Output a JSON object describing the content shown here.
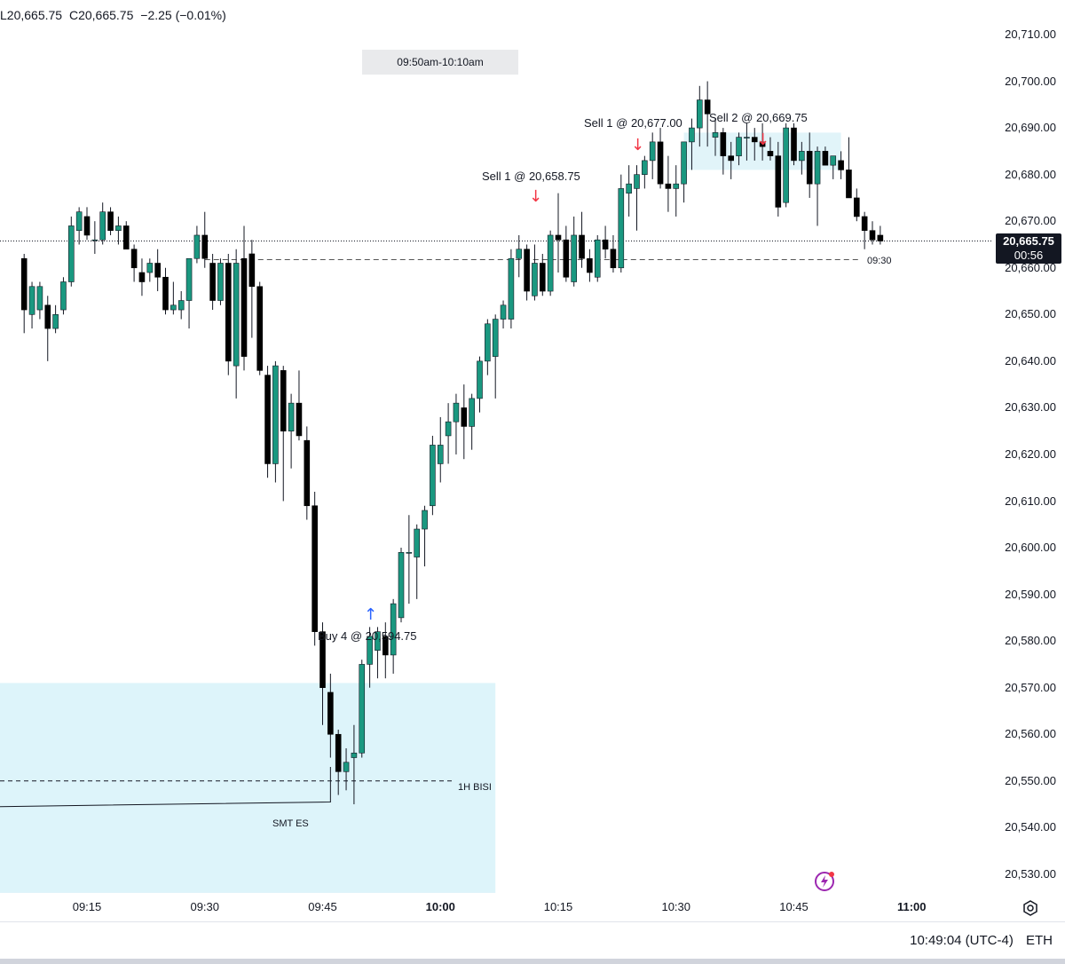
{
  "header": {
    "low": "L20,665.75",
    "close": "C20,665.75",
    "change": "−2.25 (−0.01%)"
  },
  "session_label": "09:50am-10:10am",
  "annotations": {
    "sell1a": "Sell 1 @ 20,658.75",
    "sell1b": "Sell 1 @ 20,677.00",
    "sell2": "Sell 2 @ 20,669.75",
    "buy4": "Buy 4 @ 20,594.75",
    "bisi": "1H BISI",
    "smt": "SMT ES",
    "open_line": "09:30"
  },
  "price_tag": {
    "price": "20,665.75",
    "countdown": "00:56"
  },
  "footer": {
    "clock": "10:49:04 (UTC-4)",
    "session": "ETH"
  },
  "icons": {
    "settings": "gear-icon",
    "alert": "lightning-icon"
  },
  "colors": {
    "up": "#1a9880",
    "down": "#000000",
    "zone": "#ddf4fa",
    "sell_arrow": "#f23645",
    "buy_arrow": "#2962ff"
  },
  "chart_data": {
    "type": "candlestick",
    "symbol_timeframe": "1m",
    "y_ticks": [
      "20,710.00",
      "20,700.00",
      "20,690.00",
      "20,680.00",
      "20,670.00",
      "20,660.00",
      "20,650.00",
      "20,640.00",
      "20,630.00",
      "20,620.00",
      "20,610.00",
      "20,600.00",
      "20,590.00",
      "20,580.00",
      "20,570.00",
      "20,560.00",
      "20,550.00",
      "20,540.00",
      "20,530.00"
    ],
    "x_ticks": [
      {
        "label": "09:15",
        "bold": false
      },
      {
        "label": "09:30",
        "bold": false
      },
      {
        "label": "09:45",
        "bold": false
      },
      {
        "label": "10:00",
        "bold": true
      },
      {
        "label": "10:15",
        "bold": false
      },
      {
        "label": "10:30",
        "bold": false
      },
      {
        "label": "10:45",
        "bold": false
      },
      {
        "label": "11:00",
        "bold": true
      }
    ],
    "ylim": [
      20526,
      20713
    ],
    "xlim": [
      "09:06",
      "11:13"
    ],
    "last_price": 20665.75,
    "opening_price_0930": 20661.75,
    "bisi_level": 20550.0,
    "highlight_zone": {
      "from": "09:03",
      "to": "10:07",
      "low": 20526,
      "high": 20571
    },
    "candles": [
      {
        "t": "09:07",
        "o": 20662,
        "h": 20663,
        "l": 20646,
        "c": 20651
      },
      {
        "t": "09:08",
        "o": 20650,
        "h": 20657,
        "l": 20647,
        "c": 20656
      },
      {
        "t": "09:09",
        "o": 20651,
        "h": 20657,
        "l": 20649,
        "c": 20656
      },
      {
        "t": "09:10",
        "o": 20652,
        "h": 20654,
        "l": 20640,
        "c": 20647
      },
      {
        "t": "09:11",
        "o": 20647,
        "h": 20652,
        "l": 20646,
        "c": 20650
      },
      {
        "t": "09:12",
        "o": 20651,
        "h": 20658,
        "l": 20650,
        "c": 20657
      },
      {
        "t": "09:13",
        "o": 20657,
        "h": 20671,
        "l": 20656,
        "c": 20669
      },
      {
        "t": "09:14",
        "o": 20668,
        "h": 20673,
        "l": 20665,
        "c": 20672
      },
      {
        "t": "09:15",
        "o": 20671,
        "h": 20673,
        "l": 20666,
        "c": 20667
      },
      {
        "t": "09:16",
        "o": 20666,
        "h": 20670,
        "l": 20663,
        "c": 20666
      },
      {
        "t": "09:17",
        "o": 20666,
        "h": 20674,
        "l": 20665,
        "c": 20672
      },
      {
        "t": "09:18",
        "o": 20672,
        "h": 20673,
        "l": 20667,
        "c": 20668
      },
      {
        "t": "09:19",
        "o": 20668,
        "h": 20671,
        "l": 20665,
        "c": 20669
      },
      {
        "t": "09:20",
        "o": 20669,
        "h": 20670,
        "l": 20664,
        "c": 20664
      },
      {
        "t": "09:21",
        "o": 20664,
        "h": 20665,
        "l": 20657,
        "c": 20660
      },
      {
        "t": "09:22",
        "o": 20659,
        "h": 20662,
        "l": 20654,
        "c": 20657
      },
      {
        "t": "09:23",
        "o": 20659,
        "h": 20662,
        "l": 20657,
        "c": 20661
      },
      {
        "t": "09:24",
        "o": 20661,
        "h": 20664,
        "l": 20655,
        "c": 20658
      },
      {
        "t": "09:25",
        "o": 20658,
        "h": 20660,
        "l": 20650,
        "c": 20651
      },
      {
        "t": "09:26",
        "o": 20651,
        "h": 20657,
        "l": 20650,
        "c": 20652
      },
      {
        "t": "09:27",
        "o": 20651,
        "h": 20655,
        "l": 20649,
        "c": 20653
      },
      {
        "t": "09:28",
        "o": 20653,
        "h": 20661,
        "l": 20647,
        "c": 20662
      },
      {
        "t": "09:29",
        "o": 20662,
        "h": 20669,
        "l": 20661,
        "c": 20667
      },
      {
        "t": "09:30",
        "o": 20667,
        "h": 20672,
        "l": 20660,
        "c": 20662
      },
      {
        "t": "09:31",
        "o": 20661,
        "h": 20663,
        "l": 20651,
        "c": 20653
      },
      {
        "t": "09:32",
        "o": 20653,
        "h": 20662,
        "l": 20652,
        "c": 20661
      },
      {
        "t": "09:33",
        "o": 20661,
        "h": 20663,
        "l": 20637,
        "c": 20640
      },
      {
        "t": "09:34",
        "o": 20639,
        "h": 20664,
        "l": 20632,
        "c": 20661
      },
      {
        "t": "09:35",
        "o": 20662,
        "h": 20669,
        "l": 20638,
        "c": 20641
      },
      {
        "t": "09:36",
        "o": 20663,
        "h": 20666,
        "l": 20645,
        "c": 20656
      },
      {
        "t": "09:37",
        "o": 20656,
        "h": 20657,
        "l": 20637,
        "c": 20638
      },
      {
        "t": "09:38",
        "o": 20637,
        "h": 20639,
        "l": 20615,
        "c": 20618
      },
      {
        "t": "09:39",
        "o": 20618,
        "h": 20640,
        "l": 20614,
        "c": 20639
      },
      {
        "t": "09:40",
        "o": 20638,
        "h": 20639,
        "l": 20610,
        "c": 20625
      },
      {
        "t": "09:41",
        "o": 20625,
        "h": 20633,
        "l": 20617,
        "c": 20631
      },
      {
        "t": "09:42",
        "o": 20631,
        "h": 20638,
        "l": 20623,
        "c": 20624
      },
      {
        "t": "09:43",
        "o": 20623,
        "h": 20626,
        "l": 20606,
        "c": 20609
      },
      {
        "t": "09:44",
        "o": 20609,
        "h": 20612,
        "l": 20579,
        "c": 20582
      },
      {
        "t": "09:45",
        "o": 20582,
        "h": 20584,
        "l": 20562,
        "c": 20570
      },
      {
        "t": "09:46",
        "o": 20569,
        "h": 20573,
        "l": 20555,
        "c": 20560
      },
      {
        "t": "09:47",
        "o": 20560,
        "h": 20561,
        "l": 20547,
        "c": 20552
      },
      {
        "t": "09:48",
        "o": 20552,
        "h": 20557,
        "l": 20548,
        "c": 20554
      },
      {
        "t": "09:49",
        "o": 20555,
        "h": 20562,
        "l": 20545,
        "c": 20556
      },
      {
        "t": "09:50",
        "o": 20556,
        "h": 20576,
        "l": 20555,
        "c": 20575
      },
      {
        "t": "09:51",
        "o": 20575,
        "h": 20583,
        "l": 20570,
        "c": 20581
      },
      {
        "t": "09:52",
        "o": 20578,
        "h": 20583,
        "l": 20572,
        "c": 20582
      },
      {
        "t": "09:53",
        "o": 20581,
        "h": 20584,
        "l": 20572,
        "c": 20577
      },
      {
        "t": "09:54",
        "o": 20577,
        "h": 20589,
        "l": 20573,
        "c": 20588
      },
      {
        "t": "09:55",
        "o": 20585,
        "h": 20600,
        "l": 20584,
        "c": 20599
      },
      {
        "t": "09:56",
        "o": 20599,
        "h": 20607,
        "l": 20588,
        "c": 20599
      },
      {
        "t": "09:57",
        "o": 20598,
        "h": 20605,
        "l": 20589,
        "c": 20604
      },
      {
        "t": "09:58",
        "o": 20604,
        "h": 20609,
        "l": 20596,
        "c": 20608
      },
      {
        "t": "09:59",
        "o": 20609,
        "h": 20624,
        "l": 20607,
        "c": 20622
      },
      {
        "t": "10:00",
        "o": 20618,
        "h": 20628,
        "l": 20614,
        "c": 20622
      },
      {
        "t": "10:01",
        "o": 20624,
        "h": 20631,
        "l": 20618,
        "c": 20627
      },
      {
        "t": "10:02",
        "o": 20627,
        "h": 20633,
        "l": 20620,
        "c": 20631
      },
      {
        "t": "10:03",
        "o": 20630,
        "h": 20635,
        "l": 20619,
        "c": 20626
      },
      {
        "t": "10:04",
        "o": 20626,
        "h": 20633,
        "l": 20621,
        "c": 20632
      },
      {
        "t": "10:05",
        "o": 20632,
        "h": 20641,
        "l": 20629,
        "c": 20640
      },
      {
        "t": "10:06",
        "o": 20640,
        "h": 20649,
        "l": 20637,
        "c": 20648
      },
      {
        "t": "10:07",
        "o": 20641,
        "h": 20650,
        "l": 20632,
        "c": 20649
      },
      {
        "t": "10:08",
        "o": 20649,
        "h": 20653,
        "l": 20647,
        "c": 20652
      },
      {
        "t": "10:09",
        "o": 20649,
        "h": 20664,
        "l": 20647,
        "c": 20662
      },
      {
        "t": "10:10",
        "o": 20662,
        "h": 20667,
        "l": 20658,
        "c": 20664
      },
      {
        "t": "10:11",
        "o": 20664,
        "h": 20665,
        "l": 20653,
        "c": 20655
      },
      {
        "t": "10:12",
        "o": 20654,
        "h": 20665,
        "l": 20653,
        "c": 20661
      },
      {
        "t": "10:13",
        "o": 20661,
        "h": 20663,
        "l": 20654,
        "c": 20655
      },
      {
        "t": "10:14",
        "o": 20655,
        "h": 20668,
        "l": 20654,
        "c": 20667
      },
      {
        "t": "10:15",
        "o": 20667,
        "h": 20676,
        "l": 20659,
        "c": 20666
      },
      {
        "t": "10:16",
        "o": 20666,
        "h": 20669,
        "l": 20657,
        "c": 20658
      },
      {
        "t": "10:17",
        "o": 20657,
        "h": 20671,
        "l": 20656,
        "c": 20667
      },
      {
        "t": "10:18",
        "o": 20667,
        "h": 20672,
        "l": 20660,
        "c": 20662
      },
      {
        "t": "10:19",
        "o": 20662,
        "h": 20664,
        "l": 20657,
        "c": 20659
      },
      {
        "t": "10:20",
        "o": 20658,
        "h": 20667,
        "l": 20657,
        "c": 20666
      },
      {
        "t": "10:21",
        "o": 20666,
        "h": 20669,
        "l": 20662,
        "c": 20664
      },
      {
        "t": "10:22",
        "o": 20664,
        "h": 20667,
        "l": 20659,
        "c": 20660
      },
      {
        "t": "10:23",
        "o": 20660,
        "h": 20680,
        "l": 20659,
        "c": 20677
      },
      {
        "t": "10:24",
        "o": 20676,
        "h": 20682,
        "l": 20671,
        "c": 20678
      },
      {
        "t": "10:25",
        "o": 20677,
        "h": 20682,
        "l": 20668,
        "c": 20680
      },
      {
        "t": "10:26",
        "o": 20680,
        "h": 20684,
        "l": 20677,
        "c": 20683
      },
      {
        "t": "10:27",
        "o": 20683,
        "h": 20689,
        "l": 20679,
        "c": 20687
      },
      {
        "t": "10:28",
        "o": 20687,
        "h": 20690,
        "l": 20677,
        "c": 20678
      },
      {
        "t": "10:29",
        "o": 20678,
        "h": 20684,
        "l": 20672,
        "c": 20677
      },
      {
        "t": "10:30",
        "o": 20677,
        "h": 20682,
        "l": 20671,
        "c": 20678
      },
      {
        "t": "10:31",
        "o": 20678,
        "h": 20687,
        "l": 20674,
        "c": 20687
      },
      {
        "t": "10:32",
        "o": 20687,
        "h": 20692,
        "l": 20681,
        "c": 20690
      },
      {
        "t": "10:33",
        "o": 20690,
        "h": 20699,
        "l": 20686,
        "c": 20696
      },
      {
        "t": "10:34",
        "o": 20696,
        "h": 20700,
        "l": 20686,
        "c": 20693
      },
      {
        "t": "10:35",
        "o": 20688,
        "h": 20692,
        "l": 20684,
        "c": 20689
      },
      {
        "t": "10:36",
        "o": 20689,
        "h": 20690,
        "l": 20680,
        "c": 20684
      },
      {
        "t": "10:37",
        "o": 20684,
        "h": 20687,
        "l": 20679,
        "c": 20683
      },
      {
        "t": "10:38",
        "o": 20684,
        "h": 20689,
        "l": 20682,
        "c": 20688
      },
      {
        "t": "10:39",
        "o": 20688,
        "h": 20691,
        "l": 20683,
        "c": 20688
      },
      {
        "t": "10:40",
        "o": 20688,
        "h": 20690,
        "l": 20683,
        "c": 20687
      },
      {
        "t": "10:41",
        "o": 20687,
        "h": 20691,
        "l": 20683,
        "c": 20686
      },
      {
        "t": "10:42",
        "o": 20685,
        "h": 20688,
        "l": 20683,
        "c": 20684
      },
      {
        "t": "10:43",
        "o": 20684,
        "h": 20687,
        "l": 20671,
        "c": 20673
      },
      {
        "t": "10:44",
        "o": 20674,
        "h": 20691,
        "l": 20673,
        "c": 20690
      },
      {
        "t": "10:45",
        "o": 20690,
        "h": 20691,
        "l": 20682,
        "c": 20683
      },
      {
        "t": "10:46",
        "o": 20683,
        "h": 20687,
        "l": 20680,
        "c": 20685
      },
      {
        "t": "10:47",
        "o": 20685,
        "h": 20689,
        "l": 20675,
        "c": 20678
      },
      {
        "t": "10:48",
        "o": 20678,
        "h": 20686,
        "l": 20669,
        "c": 20685
      },
      {
        "t": "10:49",
        "o": 20685,
        "h": 20686,
        "l": 20682,
        "c": 20682
      },
      {
        "t": "10:50",
        "o": 20682,
        "h": 20684,
        "l": 20679,
        "c": 20684
      },
      {
        "t": "10:51",
        "o": 20683,
        "h": 20685,
        "l": 20679,
        "c": 20681
      },
      {
        "t": "10:52",
        "o": 20681,
        "h": 20688,
        "l": 20675,
        "c": 20675
      },
      {
        "t": "10:53",
        "o": 20675,
        "h": 20677,
        "l": 20670,
        "c": 20671
      },
      {
        "t": "10:54",
        "o": 20671,
        "h": 20672,
        "l": 20664,
        "c": 20668
      },
      {
        "t": "10:55",
        "o": 20668,
        "h": 20670,
        "l": 20665,
        "c": 20666
      },
      {
        "t": "10:56",
        "o": 20667,
        "h": 20669,
        "l": 20665,
        "c": 20665.75
      }
    ]
  }
}
